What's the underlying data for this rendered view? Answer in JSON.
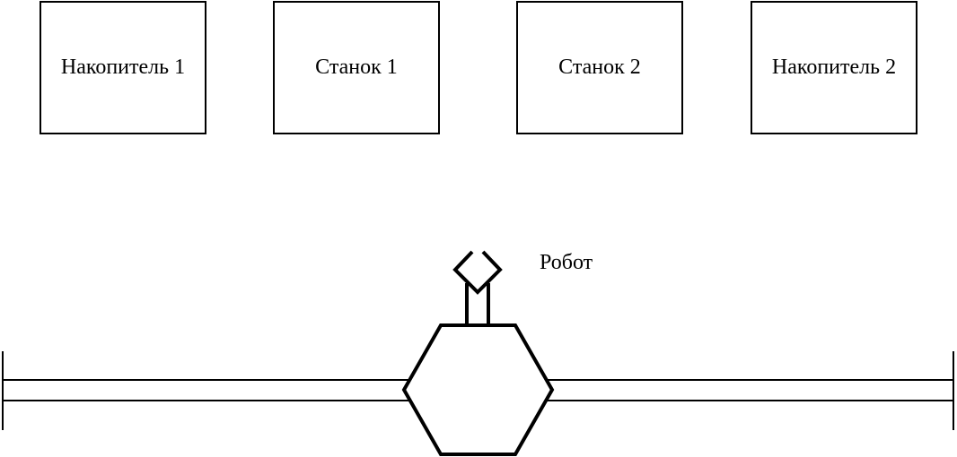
{
  "stations": [
    {
      "label": "Накопитель 1"
    },
    {
      "label": "Станок 1"
    },
    {
      "label": "Станок 2"
    },
    {
      "label": "Накопитель 2"
    }
  ],
  "robot": {
    "label": "Робот"
  },
  "colors": {
    "stroke": "#000000",
    "background": "#ffffff"
  }
}
